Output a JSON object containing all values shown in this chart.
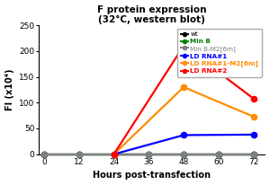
{
  "title": "F protein expression\n(32°C, western blot)",
  "xlabel": "Hours post-transfection",
  "ylabel": "FI (x10⁴)",
  "xlim": [
    -2,
    76
  ],
  "ylim": [
    0,
    250
  ],
  "xticks": [
    0,
    12,
    24,
    36,
    48,
    60,
    72
  ],
  "yticks": [
    0,
    50,
    100,
    150,
    200,
    250
  ],
  "series": [
    {
      "label": "wt",
      "color": "#000000",
      "x": [
        0,
        12,
        24,
        36,
        48,
        60,
        72
      ],
      "y": [
        0,
        0,
        0,
        0,
        0,
        0,
        0
      ]
    },
    {
      "label": "Min B",
      "color": "#008000",
      "x": [
        0,
        12,
        24,
        36,
        48,
        60,
        72
      ],
      "y": [
        0,
        0,
        0,
        0,
        0,
        0,
        0
      ]
    },
    {
      "label": "Min B-M2[6m]",
      "color": "#808080",
      "x": [
        0,
        12,
        24,
        36,
        48,
        60,
        72
      ],
      "y": [
        0,
        0,
        0,
        0,
        0,
        0,
        0
      ]
    },
    {
      "label": "LD RNA#1",
      "color": "#0000ff",
      "x": [
        24,
        48,
        72
      ],
      "y": [
        0,
        37,
        38
      ]
    },
    {
      "label": "LD RNA#1-M2[6m]",
      "color": "#ff8c00",
      "x": [
        24,
        48,
        72
      ],
      "y": [
        0,
        130,
        73
      ]
    },
    {
      "label": "LD RNA#2",
      "color": "#ff0000",
      "x": [
        24,
        48,
        72
      ],
      "y": [
        0,
        210,
        108
      ]
    }
  ],
  "legend_colors": [
    "#000000",
    "#008000",
    "#808080",
    "#0000ff",
    "#ff8c00",
    "#ff0000"
  ],
  "legend_labels": [
    "wt",
    "Min B",
    "Min B-M2[6m]",
    "LD RNA#1",
    "LD RNA#1-M2[6m]",
    "LD RNA#2"
  ],
  "legend_bold": [
    false,
    true,
    false,
    true,
    true,
    true
  ],
  "background_color": "#ffffff"
}
